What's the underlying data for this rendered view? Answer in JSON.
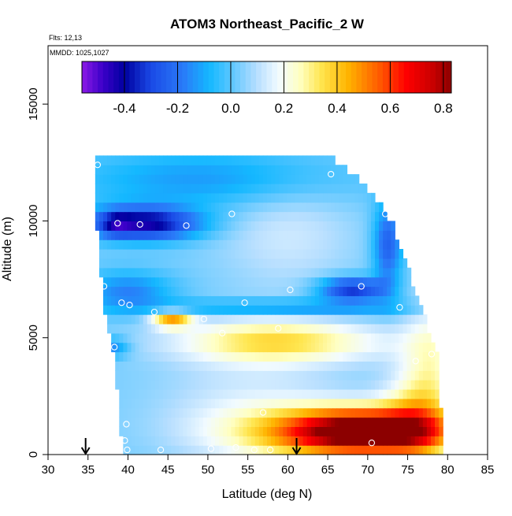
{
  "chart_data": {
    "type": "heatmap",
    "title": "ATOM3 Northeast_Pacific_2 W",
    "info_lines": [
      "Flts: 12,13",
      "MMDD: 1025,1027"
    ],
    "xlabel": "Latitude (deg N)",
    "ylabel": "Altitude (m)",
    "xlim": [
      30,
      85
    ],
    "ylim": [
      0,
      17500
    ],
    "x_ticks": [
      "30",
      "35",
      "40",
      "45",
      "50",
      "55",
      "60",
      "65",
      "70",
      "75",
      "80",
      "85"
    ],
    "x_tick_values": [
      30,
      35,
      40,
      45,
      50,
      55,
      60,
      65,
      70,
      75,
      80,
      85
    ],
    "y_ticks": [
      "0",
      "5000",
      "10000",
      "15000"
    ],
    "y_tick_values": [
      0,
      5000,
      10000,
      15000
    ],
    "colorbar": {
      "range": [
        -0.56,
        0.83
      ],
      "ticks": [
        "-0.4",
        "-0.2",
        "0.0",
        "0.2",
        "0.4",
        "0.6",
        "0.8"
      ],
      "tick_values": [
        -0.4,
        -0.2,
        0.0,
        0.2,
        0.4,
        0.6,
        0.8
      ],
      "stops": [
        {
          "v": -0.56,
          "color": "#8c1ae6"
        },
        {
          "v": -0.48,
          "color": "#3a00c8"
        },
        {
          "v": -0.4,
          "color": "#0000a0"
        },
        {
          "v": -0.3,
          "color": "#1a4ae6"
        },
        {
          "v": -0.18,
          "color": "#2a7af8"
        },
        {
          "v": -0.08,
          "color": "#14b8ff"
        },
        {
          "v": 0.0,
          "color": "#5ac6ff"
        },
        {
          "v": 0.1,
          "color": "#b8dfff"
        },
        {
          "v": 0.18,
          "color": "#f2fbff"
        },
        {
          "v": 0.26,
          "color": "#ffffc2"
        },
        {
          "v": 0.34,
          "color": "#ffe650"
        },
        {
          "v": 0.44,
          "color": "#ffb400"
        },
        {
          "v": 0.56,
          "color": "#ff5a00"
        },
        {
          "v": 0.66,
          "color": "#ff0000"
        },
        {
          "v": 0.76,
          "color": "#c80000"
        },
        {
          "v": 0.83,
          "color": "#8c0000"
        }
      ]
    },
    "grid": {
      "lat_min": 35.9,
      "lat_max": 79.5,
      "lat_step": 0.5,
      "alt_min": 0,
      "alt_max": 12500,
      "alt_step": 400
    },
    "field_model": {
      "base": 0.03,
      "extent": [
        [
          0,
          39.5,
          79.5
        ],
        [
          1200,
          39.0,
          79.5
        ],
        [
          2400,
          38.7,
          79.0
        ],
        [
          4000,
          38.3,
          79.0
        ],
        [
          5000,
          37.8,
          78.0
        ],
        [
          6000,
          37.2,
          77.0
        ],
        [
          7000,
          36.8,
          76.0
        ],
        [
          8000,
          36.5,
          75.0
        ],
        [
          9000,
          36.3,
          74.0
        ],
        [
          10000,
          36.1,
          73.0
        ],
        [
          11000,
          36.0,
          71.0
        ],
        [
          12000,
          35.9,
          68.5
        ],
        [
          12500,
          35.9,
          66.0
        ]
      ],
      "features": [
        {
          "lat": 70.0,
          "alt": 1000,
          "slat": 6.5,
          "salt": 650,
          "amp": 0.78
        },
        {
          "lat": 62.0,
          "alt": 900,
          "slat": 9.0,
          "salt": 900,
          "amp": 0.3
        },
        {
          "lat": 76.0,
          "alt": 1500,
          "slat": 3.0,
          "salt": 1400,
          "amp": 0.25
        },
        {
          "lat": 78.0,
          "alt": 4000,
          "slat": 2.5,
          "salt": 2000,
          "amp": 0.18
        },
        {
          "lat": 60.0,
          "alt": 4800,
          "slat": 10.0,
          "salt": 600,
          "amp": 0.22
        },
        {
          "lat": 45.5,
          "alt": 5800,
          "slat": 1.8,
          "salt": 250,
          "amp": 0.42
        },
        {
          "lat": 57.0,
          "alt": 5000,
          "slat": 7.0,
          "salt": 900,
          "amp": 0.12
        },
        {
          "lat": 42.0,
          "alt": 9900,
          "slat": 5.0,
          "salt": 500,
          "amp": -0.46
        },
        {
          "lat": 38.5,
          "alt": 9900,
          "slat": 1.3,
          "salt": 350,
          "amp": -0.15
        },
        {
          "lat": 50.0,
          "alt": 11800,
          "slat": 12.0,
          "salt": 900,
          "amp": -0.16
        },
        {
          "lat": 40.0,
          "alt": 7000,
          "slat": 4.0,
          "salt": 600,
          "amp": -0.2
        },
        {
          "lat": 68.0,
          "alt": 7100,
          "slat": 3.0,
          "salt": 350,
          "amp": -0.38
        },
        {
          "lat": 72.5,
          "alt": 9000,
          "slat": 1.3,
          "salt": 1300,
          "amp": -0.28
        },
        {
          "lat": 60.0,
          "alt": 6300,
          "slat": 12.0,
          "salt": 250,
          "amp": -0.22
        },
        {
          "lat": 38.0,
          "alt": 4600,
          "slat": 1.5,
          "salt": 300,
          "amp": -0.2
        },
        {
          "lat": 60.0,
          "alt": 9500,
          "slat": 6.0,
          "salt": 1700,
          "amp": 0.1
        },
        {
          "lat": 55.0,
          "alt": 2500,
          "slat": 8.0,
          "salt": 1200,
          "amp": 0.08
        }
      ]
    },
    "sample_points": [
      [
        36.2,
        12400
      ],
      [
        65.4,
        12000
      ],
      [
        38.7,
        9900
      ],
      [
        41.5,
        9850
      ],
      [
        47.3,
        9800
      ],
      [
        53.0,
        10300
      ],
      [
        72.2,
        10300
      ],
      [
        37.0,
        7200
      ],
      [
        60.3,
        7050
      ],
      [
        69.2,
        7200
      ],
      [
        39.2,
        6500
      ],
      [
        40.2,
        6400
      ],
      [
        43.3,
        6100
      ],
      [
        54.6,
        6500
      ],
      [
        74.0,
        6300
      ],
      [
        49.5,
        5800
      ],
      [
        51.8,
        5200
      ],
      [
        58.8,
        5400
      ],
      [
        38.3,
        4600
      ],
      [
        76.0,
        4000
      ],
      [
        78.0,
        4300
      ],
      [
        79.5,
        3800
      ],
      [
        56.9,
        1800
      ],
      [
        39.8,
        1300
      ],
      [
        39.6,
        600
      ],
      [
        39.9,
        200
      ],
      [
        44.1,
        200
      ],
      [
        50.4,
        250
      ],
      [
        53.5,
        300
      ],
      [
        55.8,
        200
      ],
      [
        57.8,
        200
      ],
      [
        70.5,
        500
      ]
    ],
    "arrow_markers": [
      34.7,
      61.1
    ]
  }
}
